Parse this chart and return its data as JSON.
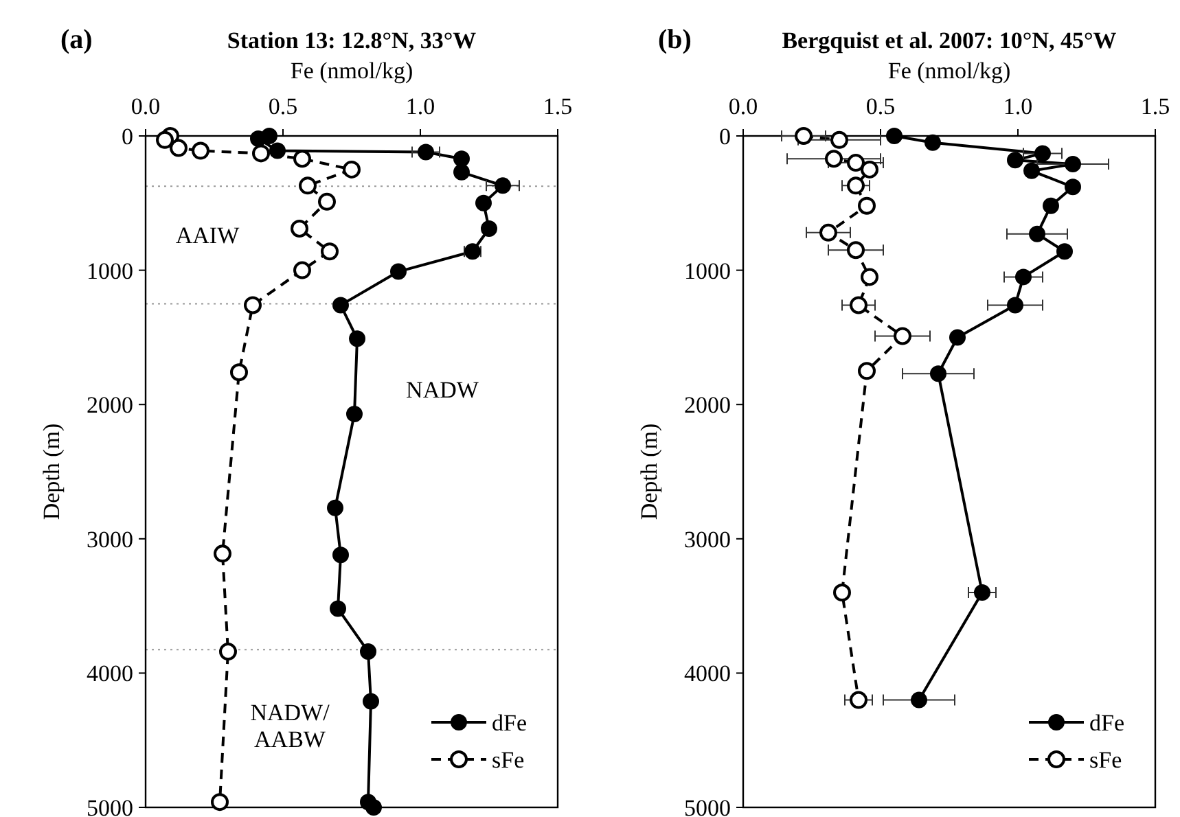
{
  "chart_data": [
    {
      "type": "line",
      "title": "Station 13: 12.8°N, 33°W",
      "xlabel": "Fe (nmol/kg)",
      "ylabel": "Depth (m)",
      "xlim": [
        0,
        1.5
      ],
      "xticks": [
        {
          "value": 0,
          "label": "0.0"
        },
        {
          "value": 0.5,
          "label": "0.5"
        },
        {
          "value": 1,
          "label": "1.0"
        },
        {
          "value": 1.5,
          "label": "1.5"
        }
      ],
      "ylim": [
        5000,
        0
      ],
      "yticks": [
        0,
        1000,
        2000,
        3000,
        4000,
        5000
      ],
      "legend": "bottom right",
      "marker": "circle",
      "ref_lines": [
        {
          "axis": "y",
          "value": 375,
          "color": "#999999",
          "line_style": "dotted"
        },
        {
          "axis": "y",
          "value": 1250,
          "color": "#999999",
          "line_style": "dotted"
        },
        {
          "axis": "y",
          "value": 3825,
          "color": "#999999",
          "line_style": "dotted"
        }
      ],
      "annotations": [
        "(a)",
        "AAIW",
        "NADW",
        "NADW/AABW"
      ],
      "series": [
        {
          "name": "dFe",
          "color": "#000000",
          "line_style": "solid",
          "x": [
            0.45,
            0.41,
            0.48,
            1.02,
            1.15,
            1.15,
            1.3,
            1.23,
            1.25,
            1.19,
            0.92,
            0.71,
            0.77,
            0.76,
            0.69,
            0.71,
            0.7,
            0.81,
            0.82,
            0.81,
            0.83
          ],
          "values": [
            0,
            20,
            110,
            120,
            170,
            270,
            370,
            500,
            690,
            860,
            1010,
            1260,
            1510,
            2070,
            2770,
            3120,
            3520,
            3840,
            4210,
            4960,
            5000
          ],
          "xerrors": [
            null,
            null,
            null,
            0.05,
            null,
            null,
            0.06,
            null,
            null,
            0.03,
            null,
            null,
            null,
            null,
            null,
            null,
            null,
            null,
            null,
            null,
            null
          ]
        },
        {
          "name": "sFe",
          "color": "#000000",
          "line_style": "dashed",
          "x": [
            0.09,
            0.07,
            0.12,
            0.2,
            0.42,
            0.57,
            0.75,
            0.59,
            0.66,
            0.56,
            0.67,
            0.57,
            0.39,
            0.34,
            0.28,
            0.3,
            0.27
          ],
          "values": [
            0,
            30,
            90,
            110,
            130,
            170,
            250,
            370,
            490,
            690,
            860,
            1000,
            1260,
            1760,
            3110,
            3840,
            4960
          ]
        }
      ]
    },
    {
      "type": "line",
      "title": "Bergquist et al. 2007: 10°N, 45°W",
      "xlabel": "Fe (nmol/kg)",
      "ylabel": "Depth (m)",
      "xlim": [
        0,
        1.5
      ],
      "xticks": [
        {
          "value": 0,
          "label": "0.0"
        },
        {
          "value": 0.5,
          "label": "0.5"
        },
        {
          "value": 1,
          "label": "1.0"
        },
        {
          "value": 1.5,
          "label": "1.5"
        }
      ],
      "ylim": [
        5000,
        0
      ],
      "yticks": [
        0,
        1000,
        2000,
        3000,
        4000,
        5000
      ],
      "legend": "bottom right",
      "marker": "circle",
      "annotations": [
        "(b)"
      ],
      "series": [
        {
          "name": "dFe",
          "color": "#000000",
          "line_style": "solid",
          "x": [
            0.55,
            0.69,
            1.09,
            0.99,
            1.2,
            1.05,
            1.2,
            1.12,
            1.07,
            1.17,
            1.02,
            0.99,
            0.78,
            0.71,
            0.87,
            0.64
          ],
          "values": [
            0,
            50,
            130,
            180,
            210,
            260,
            380,
            520,
            730,
            860,
            1050,
            1260,
            1500,
            1770,
            3400,
            4200
          ],
          "xerrors": [
            null,
            null,
            0.07,
            null,
            0.13,
            null,
            null,
            0.02,
            0.11,
            null,
            0.07,
            0.1,
            null,
            0.13,
            0.05,
            0.13
          ]
        },
        {
          "name": "sFe",
          "color": "#000000",
          "line_style": "dashed",
          "x": [
            0.22,
            0.35,
            0.33,
            0.41,
            0.46,
            0.41,
            0.45,
            0.31,
            0.41,
            0.46,
            0.42,
            0.58,
            0.45,
            0.36,
            0.42
          ],
          "values": [
            0,
            30,
            170,
            200,
            250,
            370,
            520,
            720,
            850,
            1050,
            1260,
            1490,
            1750,
            3400,
            4200
          ],
          "xerrors": [
            0.08,
            0.15,
            0.17,
            0.1,
            null,
            0.05,
            null,
            0.08,
            0.1,
            null,
            0.06,
            0.1,
            null,
            null,
            0.05
          ]
        }
      ]
    }
  ]
}
